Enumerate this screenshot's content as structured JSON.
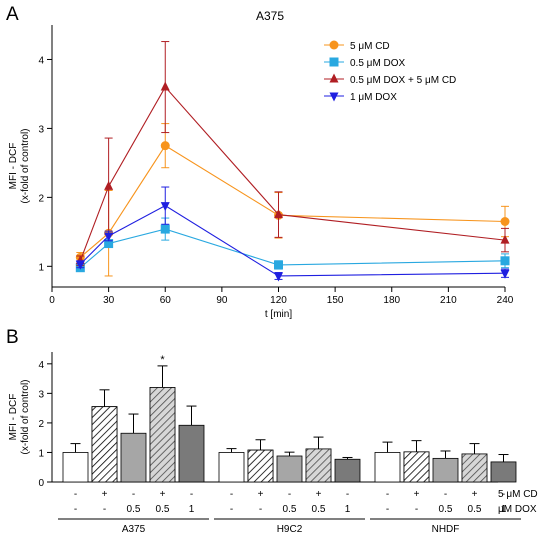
{
  "figure": {
    "panel_a_label": "A",
    "panel_b_label": "B"
  },
  "chart_data": [
    {
      "type": "line",
      "panel": "A",
      "title": "A375",
      "xlabel": "t [min]",
      "ylabel_line1": "MFI - DCF",
      "ylabel_line2": "(x-fold of control)",
      "xlim": [
        0,
        240
      ],
      "ylim": [
        0.7,
        4.5
      ],
      "xticks": [
        0,
        30,
        60,
        90,
        120,
        150,
        180,
        210,
        240
      ],
      "yticks": [
        1,
        2,
        3,
        4
      ],
      "grid": false,
      "legend_position": "top-right",
      "x": [
        15,
        30,
        60,
        120,
        240
      ],
      "series": [
        {
          "name": "5 μM CD",
          "marker": "circle",
          "color": "#F7941D",
          "values": [
            1.13,
            1.48,
            2.75,
            1.74,
            1.65
          ],
          "errors": [
            0.07,
            0.62,
            0.32,
            0.33,
            0.22
          ]
        },
        {
          "name": "0.5 μM DOX",
          "marker": "square",
          "color": "#29A8E0",
          "values": [
            0.98,
            1.33,
            1.54,
            1.02,
            1.08
          ],
          "errors": [
            0.04,
            0.05,
            0.16,
            0.06,
            0.1
          ]
        },
        {
          "name": "0.5 μM DOX + 5 μM CD",
          "marker": "triangle-up",
          "color": "#B01E23",
          "values": [
            1.08,
            2.16,
            3.6,
            1.75,
            1.38
          ],
          "errors": [
            0.07,
            0.7,
            0.66,
            0.33,
            0.17
          ]
        },
        {
          "name": "1 μM DOX",
          "marker": "triangle-down",
          "color": "#1F1FE0",
          "values": [
            1.03,
            1.44,
            1.88,
            0.86,
            0.9
          ],
          "errors": [
            0.05,
            0.07,
            0.27,
            0.05,
            0.06
          ]
        }
      ]
    },
    {
      "type": "bar",
      "panel": "B",
      "ylabel_line1": "MFI - DCF",
      "ylabel_line2": "(x-fold of control)",
      "ylim": [
        0,
        4.4
      ],
      "yticks": [
        0,
        1,
        2,
        3,
        4
      ],
      "groups": [
        "A375",
        "H9C2",
        "NHDF"
      ],
      "row_labels": [
        "5 μM  CD",
        "μM DOX"
      ],
      "cd_row": [
        "-",
        "+",
        "-",
        "+",
        "-"
      ],
      "dox_row": [
        "-",
        "-",
        "0.5",
        "0.5",
        "1"
      ],
      "bar_styles": [
        {
          "fill": "#ffffff",
          "pattern": "none"
        },
        {
          "fill": "#ffffff",
          "pattern": "hatch"
        },
        {
          "fill": "#a6a6a6",
          "pattern": "none"
        },
        {
          "fill": "#a6a6a6",
          "pattern": "hatch"
        },
        {
          "fill": "#7a7a7a",
          "pattern": "none"
        }
      ],
      "values": [
        [
          1.0,
          2.55,
          1.65,
          3.2,
          1.92
        ],
        [
          1.0,
          1.08,
          0.88,
          1.12,
          0.77
        ],
        [
          1.0,
          1.02,
          0.8,
          0.95,
          0.68
        ]
      ],
      "errors": [
        [
          0.3,
          0.57,
          0.65,
          0.73,
          0.65
        ],
        [
          0.13,
          0.35,
          0.13,
          0.4,
          0.06
        ],
        [
          0.35,
          0.38,
          0.25,
          0.35,
          0.25
        ]
      ],
      "annotation": "*",
      "annotation_bar": [
        0,
        3
      ]
    }
  ]
}
